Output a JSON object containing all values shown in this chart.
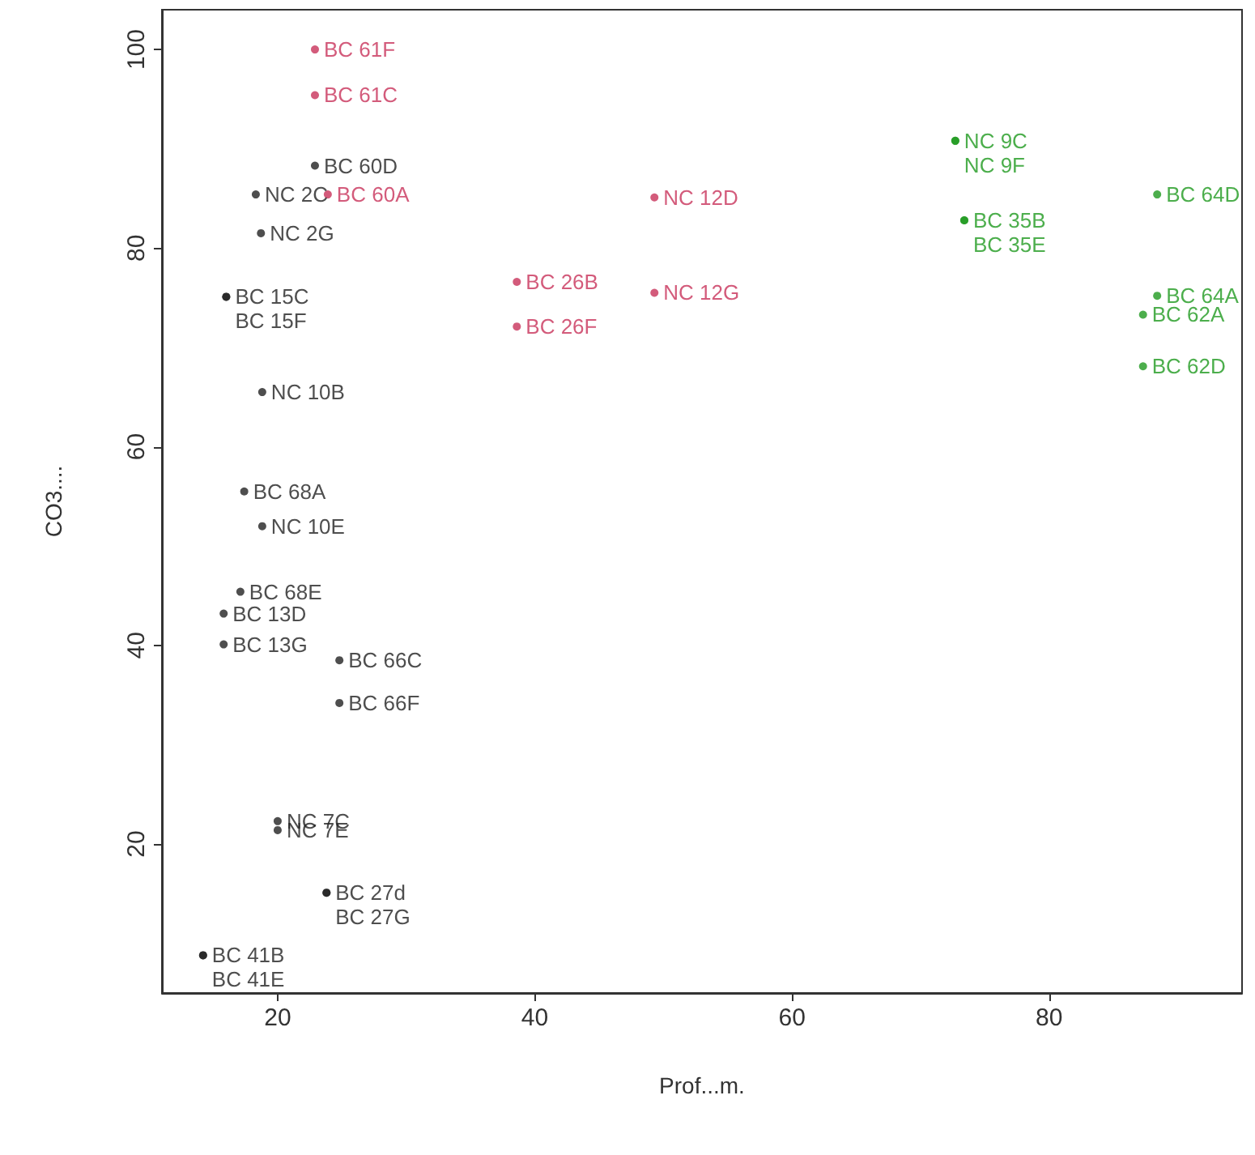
{
  "chart_data": {
    "type": "scatter",
    "xlabel": "Prof...m.",
    "ylabel": "CO3....",
    "xlim": [
      11,
      95
    ],
    "ylim": [
      5,
      104
    ],
    "xticks": [
      20,
      40,
      60,
      80
    ],
    "yticks": [
      20,
      40,
      60,
      80,
      100
    ],
    "grid": false,
    "marker": "circle",
    "series": [
      {
        "color": "#c8325a",
        "x": [
          22.9,
          22.9,
          23.9,
          38.6,
          38.6,
          49.3,
          49.3
        ],
        "values": [
          100,
          95.4,
          85.4,
          76.6,
          72.1,
          85.1,
          75.5
        ],
        "value_labels": [
          "BC 61F",
          "BC 61C",
          "BC 60A",
          "BC 26B",
          "BC 26F",
          "NC 12D",
          "NC 12G"
        ]
      },
      {
        "color": "#222222",
        "x": [
          22.9,
          18.3,
          18.7,
          16,
          16,
          18.8,
          17.4,
          18.8,
          17.1,
          15.8,
          15.8,
          24.8,
          24.8,
          20,
          20,
          23.8,
          23.8,
          14.2,
          14.2
        ],
        "values": [
          88.3,
          85.4,
          81.5,
          75.1,
          75.1,
          65.5,
          55.5,
          52,
          45.4,
          43.2,
          40.1,
          38.5,
          34.2,
          22.3,
          21.4,
          15.1,
          15.1,
          8.8,
          8.8
        ],
        "value_labels": [
          "BC 60D",
          "NC 2C",
          "NC 2G",
          "BC 15C",
          "BC 15F",
          "NC 10B",
          "BC 68A",
          "NC 10E",
          "BC 68E",
          "BC 13D",
          "BC 13G",
          "BC 66C",
          "BC 66F",
          "NC 7C",
          "NC 7E",
          "BC 27d",
          "BC 27G",
          "BC 41B",
          "BC 41E"
        ]
      },
      {
        "color": "#1f9a1f",
        "x": [
          72.7,
          72.7,
          73.4,
          73.4,
          88.4,
          88.4,
          87.3,
          87.3
        ],
        "values": [
          90.8,
          90.8,
          82.8,
          82.8,
          85.4,
          75.2,
          73.3,
          68.1
        ],
        "value_labels": [
          "NC 9C",
          "NC 9F",
          "BC 35B",
          "BC 35E",
          "BC 64D",
          "BC 64A",
          "BC 62A",
          "BC 62D"
        ]
      }
    ]
  }
}
